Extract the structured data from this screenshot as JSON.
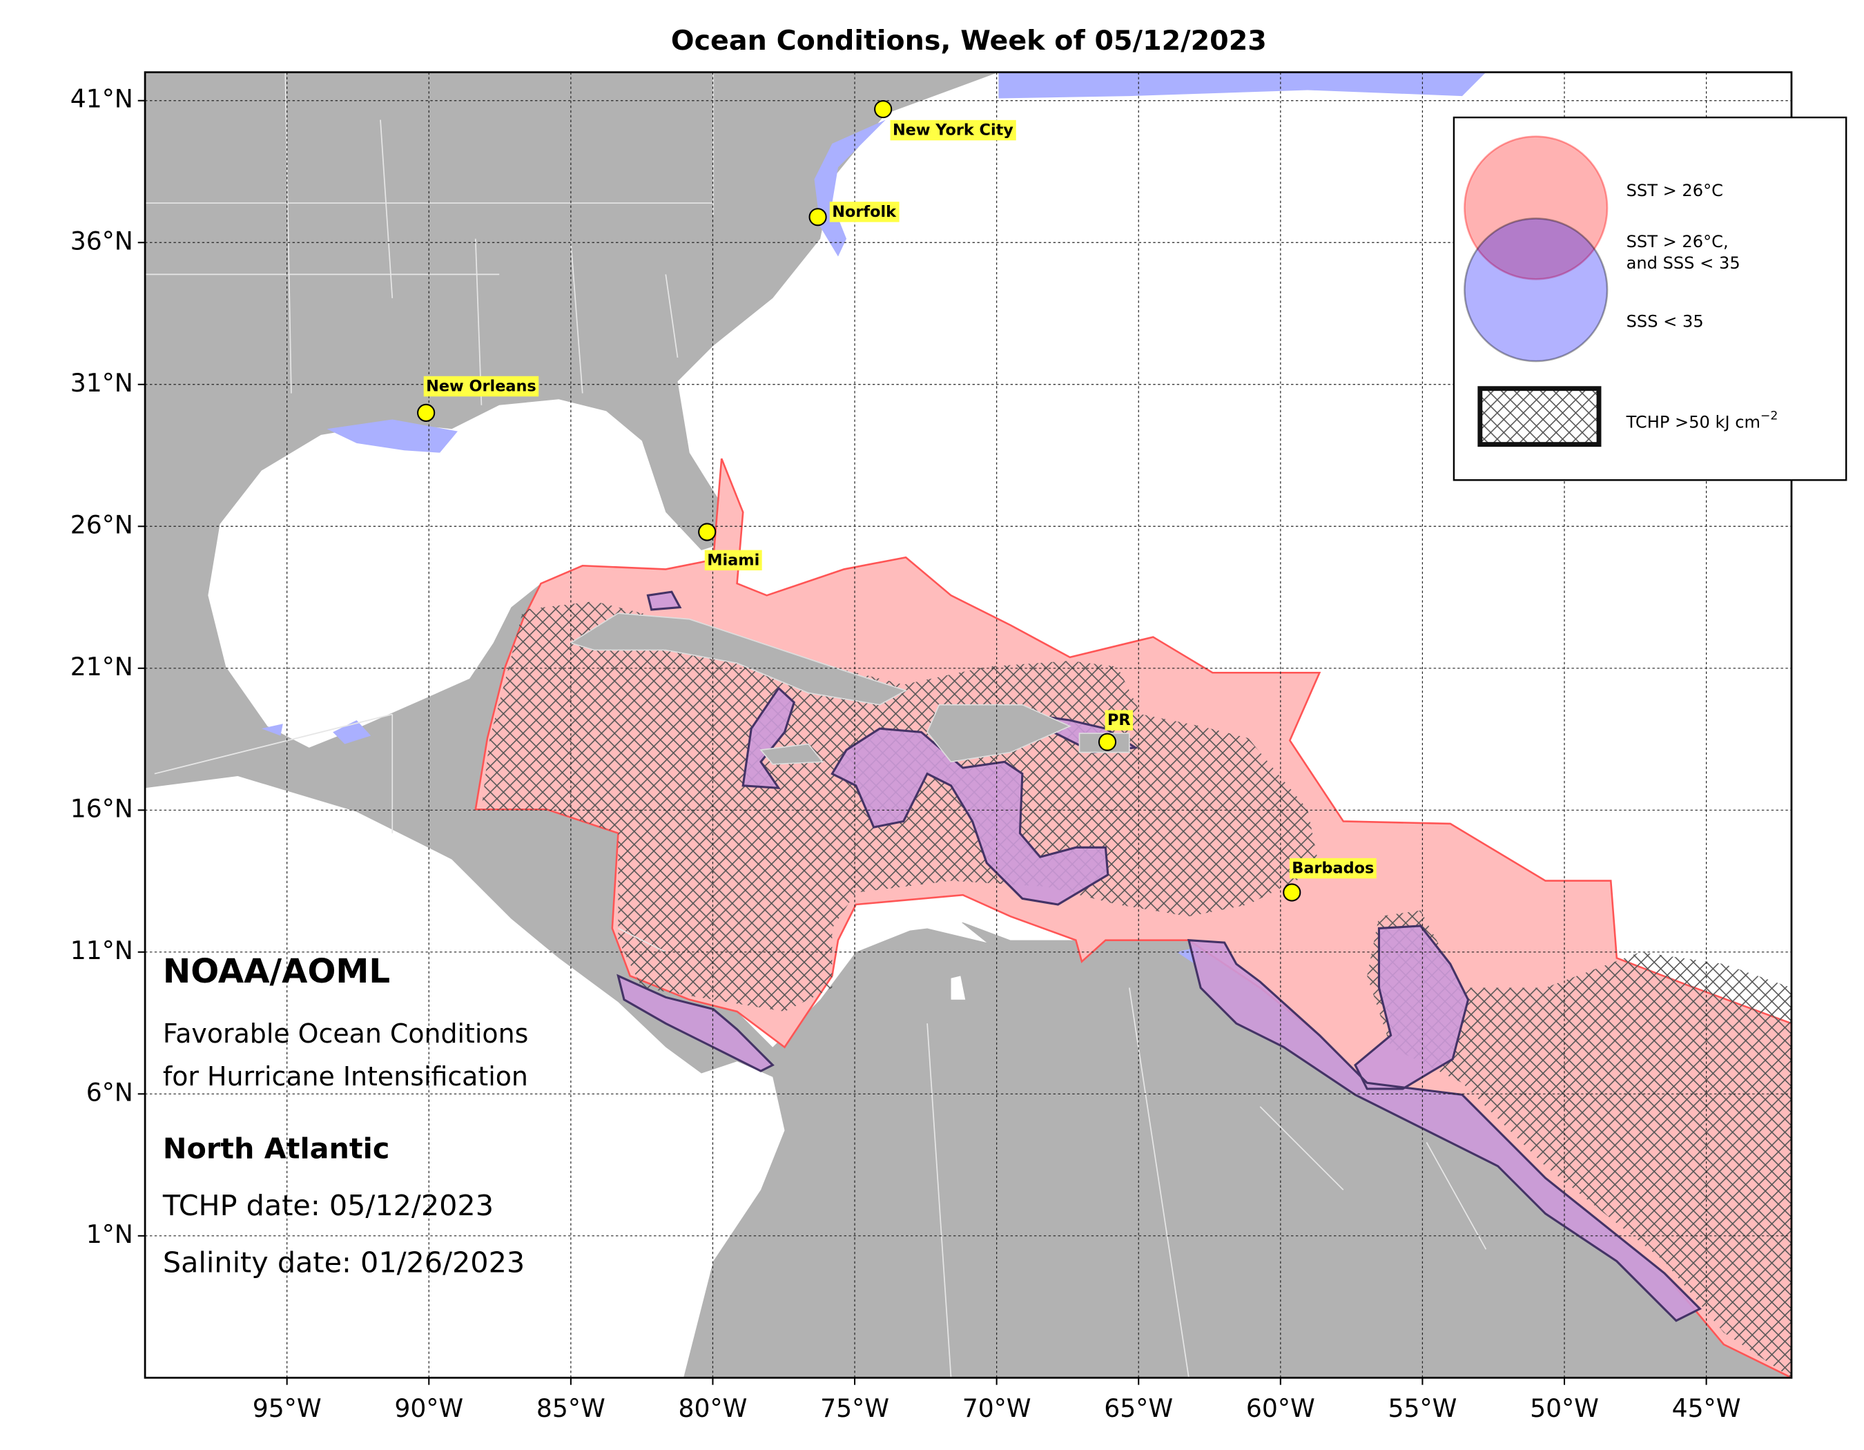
{
  "map": {
    "title": "Ocean Conditions, Week of 05/12/2023",
    "lon_range": [
      -100,
      -42
    ],
    "lat_range": [
      -4,
      42
    ],
    "lat_ticks": [
      {
        "value": 41,
        "label": "41°N"
      },
      {
        "value": 36,
        "label": "36°N"
      },
      {
        "value": 31,
        "label": "31°N"
      },
      {
        "value": 26,
        "label": "26°N"
      },
      {
        "value": 21,
        "label": "21°N"
      },
      {
        "value": 16,
        "label": "16°N"
      },
      {
        "value": 11,
        "label": "11°N"
      },
      {
        "value": 6,
        "label": "6°N"
      },
      {
        "value": 1,
        "label": "1°N"
      }
    ],
    "lon_ticks": [
      {
        "value": -95,
        "label": "95°W"
      },
      {
        "value": -90,
        "label": "90°W"
      },
      {
        "value": -85,
        "label": "85°W"
      },
      {
        "value": -80,
        "label": "80°W"
      },
      {
        "value": -75,
        "label": "75°W"
      },
      {
        "value": -70,
        "label": "70°W"
      },
      {
        "value": -65,
        "label": "65°W"
      },
      {
        "value": -60,
        "label": "60°W"
      },
      {
        "value": -55,
        "label": "55°W"
      },
      {
        "value": -50,
        "label": "50°W"
      },
      {
        "value": -45,
        "label": "45°W"
      }
    ],
    "cities": [
      {
        "label": "New York City",
        "lon": -74.0,
        "lat": 40.7
      },
      {
        "label": "Norfolk",
        "lon": -76.3,
        "lat": 36.9
      },
      {
        "label": "New Orleans",
        "lon": -90.1,
        "lat": 30.0
      },
      {
        "label": "Miami",
        "lon": -80.2,
        "lat": 25.8
      },
      {
        "label": "PR",
        "lon": -66.1,
        "lat": 18.4
      },
      {
        "label": "Barbados",
        "lon": -59.6,
        "lat": 13.1
      }
    ],
    "legend": {
      "sst": "SST > 26°C",
      "both_line1": "SST > 26°C,",
      "both_line2": "and SSS < 35",
      "sss": "SSS < 35",
      "tchp": "TCHP >50 kJ cm",
      "tchp_superscript": "−2"
    },
    "info": {
      "org": "NOAA/AOML",
      "subtitle_line1": "Favorable Ocean Conditions",
      "subtitle_line2": "for Hurricane Intensification",
      "region": "North Atlantic",
      "tchp_date": "TCHP date: 05/12/2023",
      "salinity_date": "Salinity date: 01/26/2023"
    }
  }
}
